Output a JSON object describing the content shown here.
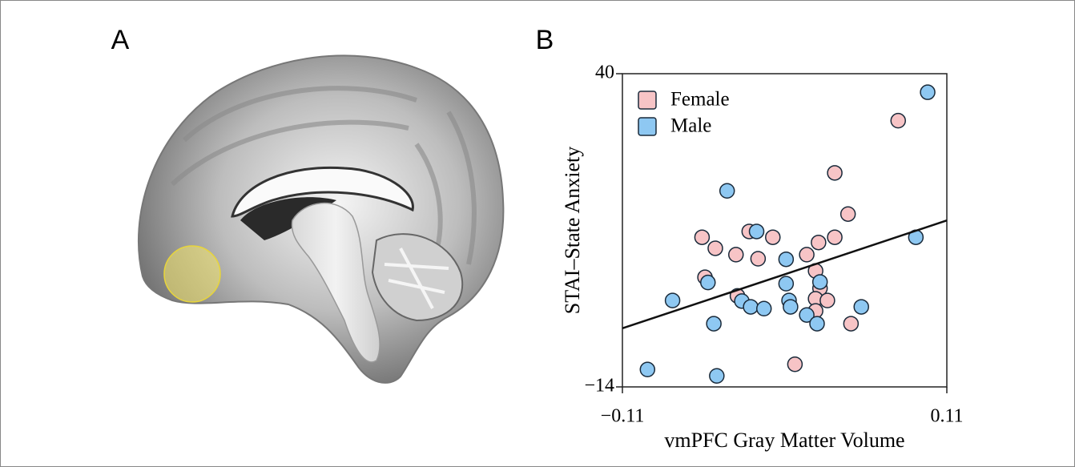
{
  "panels": {
    "a": {
      "label": "A"
    },
    "b": {
      "label": "B"
    }
  },
  "chart_data": {
    "type": "scatter",
    "x_label": "vmPFC Gray Matter Volume",
    "y_label": "STAI–State Anxiety",
    "xlim": [
      -0.11,
      0.11
    ],
    "ylim": [
      -14,
      40
    ],
    "xticks": [
      {
        "value": -0.11,
        "label": "−0.11"
      },
      0.11
    ],
    "yticks": [
      {
        "value": -14,
        "label": "−14"
      },
      40
    ],
    "legend": "top-left",
    "series": [
      {
        "name": "Female",
        "color": "#f7c4c6",
        "x": [
          -0.056,
          -0.047,
          -0.033,
          -0.024,
          -0.018,
          -0.008,
          0.034,
          0.043,
          0.034,
          0.023,
          0.015,
          0.021,
          -0.054,
          -0.032,
          0.024,
          0.021,
          0.029,
          0.021,
          0.045,
          0.077,
          0.007
        ],
        "y": [
          11.8,
          9.9,
          8.8,
          12.8,
          8.1,
          11.8,
          22.9,
          15.8,
          11.8,
          10.9,
          8.8,
          6.0,
          4.9,
          1.7,
          3.0,
          1.2,
          0.9,
          -0.9,
          -3.1,
          31.9,
          -10.1
        ]
      },
      {
        "name": "Male",
        "color": "#8ec8f2",
        "x": [
          -0.039,
          0.097,
          -0.019,
          0.001,
          -0.052,
          -0.076,
          -0.029,
          -0.023,
          -0.014,
          0.001,
          0.003,
          0.004,
          0.015,
          0.022,
          0.052,
          0.089,
          -0.048,
          -0.093,
          -0.046,
          0.024
        ],
        "y": [
          19.8,
          36.8,
          12.8,
          8.0,
          4.0,
          0.9,
          0.8,
          -0.2,
          -0.5,
          3.8,
          0.9,
          -0.2,
          -1.6,
          -3.1,
          -0.2,
          11.8,
          -3.1,
          -11.0,
          -12.1,
          4.1
        ]
      }
    ],
    "trend_line": {
      "color": "#111111",
      "x": [
        -0.11,
        0.11
      ],
      "y": [
        -3.9,
        14.7
      ]
    }
  }
}
